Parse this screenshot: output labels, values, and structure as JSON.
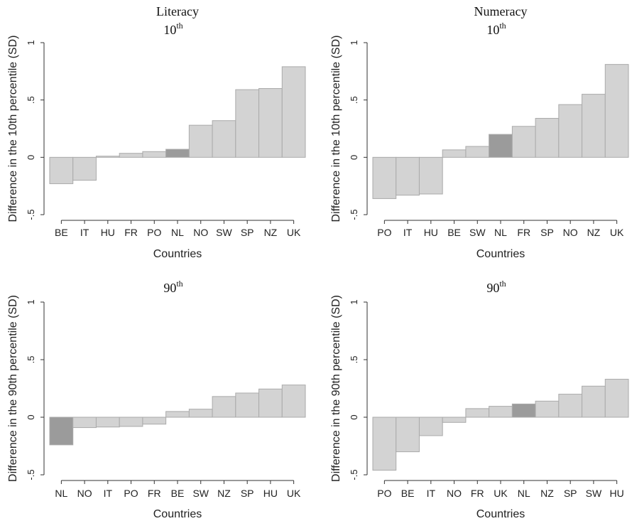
{
  "colors": {
    "bar": "#d3d3d3",
    "highlight": "#9b9b9b",
    "background": "#ffffff"
  },
  "chart_data": [
    {
      "type": "bar",
      "title": "Literacy",
      "subtitle_base": "10",
      "subtitle_sup": "th",
      "ylabel": "Difference in the 10th percentile (SD)",
      "xlabel": "Countries",
      "ylim": [
        -0.5,
        1
      ],
      "yticks": [
        "-.5",
        "0",
        ".5",
        "1"
      ],
      "categories": [
        "BE",
        "IT",
        "HU",
        "FR",
        "PO",
        "NL",
        "NO",
        "SW",
        "SP",
        "NZ",
        "UK"
      ],
      "values": [
        -0.23,
        -0.2,
        0.01,
        0.035,
        0.05,
        0.07,
        0.28,
        0.32,
        0.59,
        0.6,
        0.79
      ],
      "highlight": "NL"
    },
    {
      "type": "bar",
      "title": "Numeracy",
      "subtitle_base": "10",
      "subtitle_sup": "th",
      "ylabel": "Difference in the 10th percentile (SD)",
      "xlabel": "Countries",
      "ylim": [
        -0.5,
        1
      ],
      "yticks": [
        "-.5",
        "0",
        ".5",
        "1"
      ],
      "categories": [
        "PO",
        "IT",
        "HU",
        "BE",
        "SW",
        "NL",
        "FR",
        "SP",
        "NO",
        "NZ",
        "UK"
      ],
      "values": [
        -0.36,
        -0.33,
        -0.32,
        0.065,
        0.095,
        0.2,
        0.27,
        0.34,
        0.46,
        0.55,
        0.81
      ],
      "highlight": "NL"
    },
    {
      "type": "bar",
      "title": "",
      "subtitle_base": "90",
      "subtitle_sup": "th",
      "ylabel": "Difference in the 90th percentile (SD)",
      "xlabel": "Countries",
      "ylim": [
        -0.5,
        1
      ],
      "yticks": [
        "-.5",
        "0",
        ".5",
        "1"
      ],
      "categories": [
        "NL",
        "NO",
        "IT",
        "PO",
        "FR",
        "BE",
        "SW",
        "NZ",
        "SP",
        "HU",
        "UK"
      ],
      "values": [
        -0.24,
        -0.09,
        -0.085,
        -0.08,
        -0.06,
        0.05,
        0.07,
        0.18,
        0.21,
        0.245,
        0.28
      ],
      "highlight": "NL"
    },
    {
      "type": "bar",
      "title": "",
      "subtitle_base": "90",
      "subtitle_sup": "th",
      "ylabel": "Difference in the 90th percentile (SD)",
      "xlabel": "Countries",
      "ylim": [
        -0.5,
        1
      ],
      "yticks": [
        "-.5",
        "0",
        ".5",
        "1"
      ],
      "categories": [
        "PO",
        "BE",
        "IT",
        "NO",
        "FR",
        "UK",
        "NL",
        "NZ",
        "SP",
        "SW",
        "HU"
      ],
      "values": [
        -0.46,
        -0.3,
        -0.16,
        -0.045,
        0.075,
        0.095,
        0.115,
        0.14,
        0.2,
        0.27,
        0.33
      ],
      "highlight": "NL"
    }
  ]
}
